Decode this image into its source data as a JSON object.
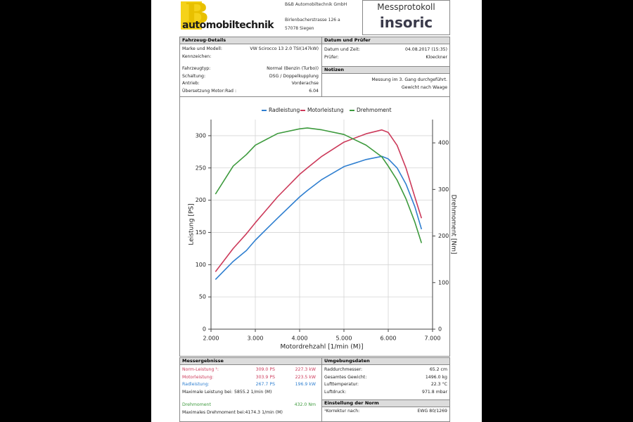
{
  "header": {
    "logo_letter": "B",
    "logo_text": "automobiltechnik",
    "company": "B&B Automobiltechnik GmbH",
    "street": "Birlenbacherstrasse 126 a",
    "city": "57078 Siegen",
    "title": "Messprotokoll",
    "brand": "insoric"
  },
  "vehicle": {
    "heading": "Fahrzeug-Details",
    "rows": [
      [
        "Marke und Modell:",
        "VW Scirocco 13 2.0 TSI(147kW)"
      ],
      [
        "Kennzeichen:"
      ],
      [
        "Fahrzeugtyp:",
        "Normal (Benzin (Turbo))"
      ],
      [
        "Schaltung:",
        "DSG / Doppelkupplung"
      ],
      [
        "Antrieb:",
        "Vorderachse"
      ],
      [
        "Übersetzung Motor:Rad :",
        "6.04"
      ]
    ]
  },
  "inspection": {
    "heading": "Datum und Prüfer",
    "rows": [
      [
        "Datum und Zeit:",
        "04.08.2017 (15:35)"
      ],
      [
        "Prüfer:",
        "Kloeckner"
      ]
    ]
  },
  "notes": {
    "heading": "Notizen",
    "lines": [
      "Messung im 3. Gang durchgeführt.",
      "Gewicht nach Waage"
    ]
  },
  "chart_data": {
    "type": "line",
    "legend": "top",
    "grid": true,
    "xlabel": "Motordrehzahl [1/min (M)]",
    "ylabel": "Leistung [PS]",
    "y2label": "Drehmoment [Nm]",
    "x": [
      2100,
      2500,
      2800,
      3000,
      3500,
      4000,
      4174,
      4500,
      5000,
      5500,
      5855,
      6000,
      6200,
      6400,
      6600,
      6750
    ],
    "xlim": [
      2000,
      7000
    ],
    "xticks": [
      {
        "value": 2000,
        "label": "2.000"
      },
      {
        "value": 3000,
        "label": "3.000"
      },
      {
        "value": 4000,
        "label": "4.000"
      },
      {
        "value": 5000,
        "label": "5.000"
      },
      {
        "value": 6000,
        "label": "6.000"
      },
      {
        "value": 7000,
        "label": "7.000"
      }
    ],
    "ylim": [
      0,
      325
    ],
    "yticks": [
      0,
      50,
      100,
      150,
      200,
      250,
      300
    ],
    "y2lim": [
      0,
      450
    ],
    "y2ticks": [
      0,
      100,
      200,
      300,
      400
    ],
    "series": [
      {
        "name": "Radleistung",
        "color": "#2f7fd0",
        "values": [
          77,
          105,
          122,
          138,
          172,
          205,
          215,
          232,
          252,
          263,
          268,
          264,
          250,
          225,
          190,
          155
        ]
      },
      {
        "name": "Motorleistung",
        "color": "#cc3a5a",
        "values": [
          89,
          125,
          148,
          165,
          205,
          240,
          250,
          268,
          290,
          303,
          309,
          305,
          285,
          250,
          205,
          172
        ]
      },
      {
        "name": "Drehmoment",
        "color": "#3d9a3d",
        "axis": "y2",
        "values": [
          290,
          350,
          375,
          395,
          420,
          430,
          432,
          428,
          418,
          395,
          370,
          350,
          320,
          280,
          230,
          185
        ]
      }
    ]
  },
  "results": {
    "heading": "Messergebnisse",
    "rows": [
      {
        "cells": [
          "Norm-Leistung ¹:",
          "309.0 PS",
          "227.3 kW"
        ],
        "color": "#cc3a5a"
      },
      {
        "cells": [
          "Motorleistung:",
          "303.9 PS",
          "223.5 kW"
        ],
        "color": "#cc3a5a"
      },
      {
        "cells": [
          "Radleistung:",
          "267.7 PS",
          "196.9 kW"
        ],
        "color": "#2f7fd0"
      },
      {
        "cells": [
          "Maximale Leistung bei:",
          "5855.2 1/min (M)"
        ]
      },
      {
        "cells": [
          "Drehmoment",
          "432.0 Nm"
        ],
        "color": "#3d9a3d"
      },
      {
        "cells": [
          "Maximales Drehmoment bei:",
          "4174.3 1/min (M)"
        ]
      }
    ]
  },
  "environment": {
    "heading": "Umgebungsdaten",
    "rows": [
      [
        "Raddurchmesser:",
        "65.2 cm"
      ],
      [
        "Gesamtes Gewicht:",
        "1496.0 kg"
      ],
      [
        "Lufttemperatur:",
        "22.3 °C"
      ],
      [
        "Luftdruck:",
        "971.8 mbar"
      ]
    ]
  },
  "norm": {
    "heading": "Einstellung der Norm",
    "rows": [
      [
        "¹Korrektur nach:",
        "EWG 80/1269"
      ]
    ]
  }
}
